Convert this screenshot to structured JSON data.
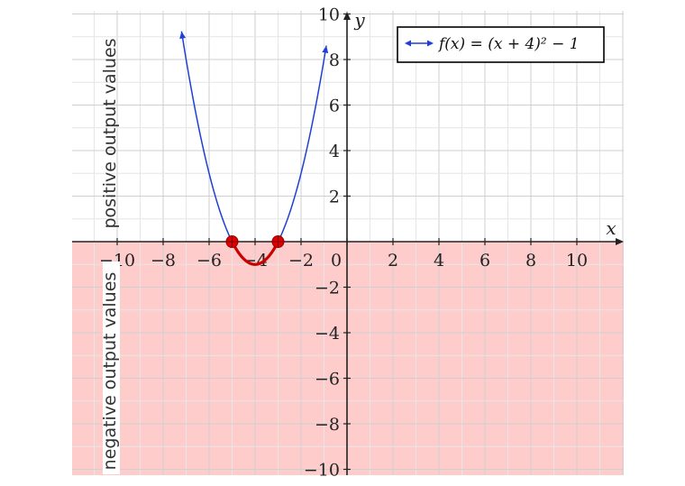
{
  "chart_data": {
    "type": "line",
    "title": "",
    "xlabel": "x",
    "ylabel": "y",
    "xlim": [
      -12,
      12
    ],
    "ylim": [
      -10,
      10
    ],
    "grid": true,
    "legend_placement": "top-right",
    "x_ticks": [
      -10,
      -8,
      -6,
      -4,
      -2,
      0,
      2,
      4,
      6,
      8,
      10
    ],
    "y_ticks": [
      -10,
      -8,
      -6,
      -4,
      -2,
      2,
      4,
      6,
      8,
      10
    ],
    "x_tick_labels": [
      "−10",
      "−8",
      "−6",
      "−4",
      "−2",
      "0",
      "2",
      "4",
      "6",
      "8",
      "10"
    ],
    "y_tick_labels": [
      "−10",
      "−8",
      "−6",
      "−4",
      "−2",
      "2",
      "4",
      "6",
      "8",
      "10"
    ],
    "series": [
      {
        "name": "f(x) = (x + 4)² − 1",
        "color": "#1f3fd6",
        "x": [
          -7.2,
          -7.0,
          -6.5,
          -6.0,
          -5.5,
          -5.0,
          -4.5,
          -4.0,
          -3.5,
          -3.0,
          -2.5,
          -2.0,
          -1.5,
          -0.9
        ],
        "y": [
          9.24,
          8.0,
          5.25,
          3.0,
          1.25,
          0.0,
          -0.75,
          -1.0,
          -0.75,
          0.0,
          1.25,
          3.0,
          5.25,
          8.61
        ]
      }
    ],
    "highlight_segment": {
      "color": "#cc0000",
      "x": [
        -5.0,
        -4.5,
        -4.0,
        -3.5,
        -3.0
      ],
      "y": [
        0.0,
        -0.75,
        -1.0,
        -0.75,
        0.0
      ]
    },
    "points": [
      {
        "x": -5,
        "y": 0
      },
      {
        "x": -3,
        "y": 0
      }
    ],
    "shaded_regions": [
      {
        "label": "positive output values",
        "y_range": [
          0,
          10
        ],
        "color": "#ffffff"
      },
      {
        "label": "negative output values",
        "y_range": [
          -10,
          0
        ],
        "color": "#ffcccc"
      }
    ]
  }
}
